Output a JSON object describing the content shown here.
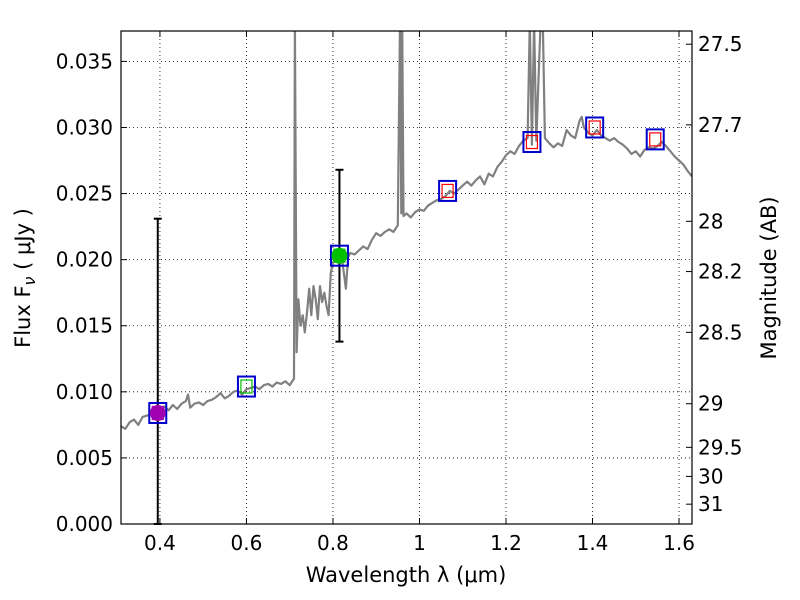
{
  "chart_data": {
    "type": "line",
    "xlabel": "Wavelength  λ (μm)",
    "ylabel_left": "Flux  F",
    "ylabel_left_sub": "ν",
    "ylabel_left_units": " ( μJy )",
    "ylabel_right": "Magnitude (AB)",
    "xlim": [
      0.31,
      1.63
    ],
    "ylim": [
      0.0,
      0.0373
    ],
    "grid": true,
    "x_ticks": [
      0.4,
      0.6,
      0.8,
      1.0,
      1.2,
      1.4,
      1.6
    ],
    "x_tick_labels": [
      "0.4",
      "0.6",
      "0.8",
      "1",
      "1.2",
      "1.4",
      "1.6"
    ],
    "y_ticks": [
      0.0,
      0.005,
      0.01,
      0.015,
      0.02,
      0.025,
      0.03,
      0.035
    ],
    "y_tick_labels": [
      "0.000",
      "0.005",
      "0.010",
      "0.015",
      "0.020",
      "0.025",
      "0.030",
      "0.035"
    ],
    "right_ticks": [
      {
        "label": "27.5",
        "flux": 0.0363
      },
      {
        "label": "27.7",
        "flux": 0.0302
      },
      {
        "label": "28",
        "flux": 0.0229
      },
      {
        "label": "28.2",
        "flux": 0.0191
      },
      {
        "label": "28.5",
        "flux": 0.0145
      },
      {
        "label": "29",
        "flux": 0.0091
      },
      {
        "label": "29.5",
        "flux": 0.0058
      },
      {
        "label": "30",
        "flux": 0.0036
      },
      {
        "label": "31",
        "flux": 0.0015
      }
    ],
    "series": [
      {
        "name": "model-spectrum",
        "color": "#808080",
        "points": [
          [
            0.31,
            0.0074
          ],
          [
            0.32,
            0.0072
          ],
          [
            0.33,
            0.0077
          ],
          [
            0.34,
            0.0079
          ],
          [
            0.35,
            0.0075
          ],
          [
            0.36,
            0.0081
          ],
          [
            0.37,
            0.0082
          ],
          [
            0.38,
            0.0083
          ],
          [
            0.39,
            0.0084
          ],
          [
            0.4,
            0.0085
          ],
          [
            0.41,
            0.0089
          ],
          [
            0.42,
            0.0086
          ],
          [
            0.43,
            0.009
          ],
          [
            0.44,
            0.0087
          ],
          [
            0.45,
            0.0091
          ],
          [
            0.46,
            0.0093
          ],
          [
            0.465,
            0.0098
          ],
          [
            0.47,
            0.0088
          ],
          [
            0.48,
            0.0091
          ],
          [
            0.49,
            0.0092
          ],
          [
            0.5,
            0.009
          ],
          [
            0.51,
            0.0093
          ],
          [
            0.52,
            0.0094
          ],
          [
            0.53,
            0.0096
          ],
          [
            0.54,
            0.0099
          ],
          [
            0.55,
            0.0095
          ],
          [
            0.56,
            0.0097
          ],
          [
            0.57,
            0.01
          ],
          [
            0.58,
            0.0101
          ],
          [
            0.59,
            0.0098
          ],
          [
            0.6,
            0.0102
          ],
          [
            0.61,
            0.0103
          ],
          [
            0.62,
            0.0104
          ],
          [
            0.63,
            0.0102
          ],
          [
            0.64,
            0.0105
          ],
          [
            0.65,
            0.0106
          ],
          [
            0.66,
            0.0104
          ],
          [
            0.67,
            0.0107
          ],
          [
            0.68,
            0.0106
          ],
          [
            0.69,
            0.0108
          ],
          [
            0.7,
            0.0105
          ],
          [
            0.71,
            0.011
          ],
          [
            0.712,
            0.038
          ],
          [
            0.716,
            0.013
          ],
          [
            0.72,
            0.017
          ],
          [
            0.725,
            0.015
          ],
          [
            0.73,
            0.0158
          ],
          [
            0.735,
            0.0145
          ],
          [
            0.74,
            0.016
          ],
          [
            0.745,
            0.0178
          ],
          [
            0.75,
            0.0158
          ],
          [
            0.755,
            0.018
          ],
          [
            0.76,
            0.017
          ],
          [
            0.765,
            0.0155
          ],
          [
            0.77,
            0.018
          ],
          [
            0.775,
            0.0168
          ],
          [
            0.78,
            0.0175
          ],
          [
            0.785,
            0.0165
          ],
          [
            0.79,
            0.0158
          ],
          [
            0.795,
            0.019
          ],
          [
            0.8,
            0.0198
          ],
          [
            0.81,
            0.02
          ],
          [
            0.82,
            0.0203
          ],
          [
            0.83,
            0.0178
          ],
          [
            0.835,
            0.0202
          ],
          [
            0.84,
            0.0205
          ],
          [
            0.85,
            0.0204
          ],
          [
            0.86,
            0.0207
          ],
          [
            0.87,
            0.021
          ],
          [
            0.88,
            0.0208
          ],
          [
            0.89,
            0.0215
          ],
          [
            0.9,
            0.022
          ],
          [
            0.91,
            0.0218
          ],
          [
            0.92,
            0.0221
          ],
          [
            0.93,
            0.0223
          ],
          [
            0.94,
            0.0221
          ],
          [
            0.95,
            0.0226
          ],
          [
            0.955,
            0.038
          ],
          [
            0.958,
            0.0235
          ],
          [
            0.96,
            0.038
          ],
          [
            0.963,
            0.0233
          ],
          [
            0.97,
            0.0235
          ],
          [
            0.98,
            0.0232
          ],
          [
            0.99,
            0.0236
          ],
          [
            1.0,
            0.0238
          ],
          [
            1.01,
            0.0237
          ],
          [
            1.02,
            0.0241
          ],
          [
            1.03,
            0.0243
          ],
          [
            1.04,
            0.0245
          ],
          [
            1.05,
            0.0246
          ],
          [
            1.06,
            0.0248
          ],
          [
            1.07,
            0.0252
          ],
          [
            1.08,
            0.025
          ],
          [
            1.09,
            0.0253
          ],
          [
            1.1,
            0.0256
          ],
          [
            1.11,
            0.0259
          ],
          [
            1.12,
            0.0256
          ],
          [
            1.13,
            0.026
          ],
          [
            1.14,
            0.0263
          ],
          [
            1.15,
            0.0257
          ],
          [
            1.16,
            0.0265
          ],
          [
            1.17,
            0.0263
          ],
          [
            1.18,
            0.027
          ],
          [
            1.19,
            0.0274
          ],
          [
            1.2,
            0.0279
          ],
          [
            1.21,
            0.0282
          ],
          [
            1.22,
            0.028
          ],
          [
            1.23,
            0.0286
          ],
          [
            1.24,
            0.029
          ],
          [
            1.25,
            0.0292
          ],
          [
            1.255,
            0.038
          ],
          [
            1.26,
            0.0287
          ],
          [
            1.265,
            0.038
          ],
          [
            1.27,
            0.029
          ],
          [
            1.28,
            0.038
          ],
          [
            1.285,
            0.038
          ],
          [
            1.29,
            0.0292
          ],
          [
            1.3,
            0.0288
          ],
          [
            1.31,
            0.0285
          ],
          [
            1.32,
            0.0288
          ],
          [
            1.33,
            0.0286
          ],
          [
            1.34,
            0.0298
          ],
          [
            1.35,
            0.0294
          ],
          [
            1.36,
            0.0292
          ],
          [
            1.37,
            0.0305
          ],
          [
            1.375,
            0.0308
          ],
          [
            1.38,
            0.03
          ],
          [
            1.39,
            0.0296
          ],
          [
            1.4,
            0.0294
          ],
          [
            1.41,
            0.0298
          ],
          [
            1.42,
            0.0294
          ],
          [
            1.43,
            0.0292
          ],
          [
            1.44,
            0.029
          ],
          [
            1.45,
            0.0292
          ],
          [
            1.46,
            0.0289
          ],
          [
            1.47,
            0.0287
          ],
          [
            1.48,
            0.0284
          ],
          [
            1.49,
            0.028
          ],
          [
            1.5,
            0.0282
          ],
          [
            1.51,
            0.0278
          ],
          [
            1.52,
            0.0283
          ],
          [
            1.53,
            0.0285
          ],
          [
            1.54,
            0.0284
          ],
          [
            1.55,
            0.0286
          ],
          [
            1.56,
            0.0289
          ],
          [
            1.57,
            0.0286
          ],
          [
            1.58,
            0.0282
          ],
          [
            1.59,
            0.0278
          ],
          [
            1.6,
            0.0275
          ],
          [
            1.61,
            0.0272
          ],
          [
            1.62,
            0.0267
          ],
          [
            1.63,
            0.0263
          ]
        ]
      }
    ],
    "photometry": [
      {
        "name": "point-0.39",
        "x": 0.395,
        "y": 0.0084,
        "type": "circle",
        "color": "#a000b0",
        "err_low": 0.0,
        "err_high": 0.0231
      },
      {
        "name": "point-0.81",
        "x": 0.815,
        "y": 0.0203,
        "type": "circle",
        "color": "#00c000",
        "err_low": 0.0138,
        "err_high": 0.0268
      }
    ],
    "model_boxes": [
      {
        "name": "box-0.395",
        "x": 0.395,
        "y": 0.0084,
        "inner_color": "#a000b0"
      },
      {
        "name": "box-0.60",
        "x": 0.6,
        "y": 0.0104,
        "inner_color": "#00c000"
      },
      {
        "name": "box-0.815",
        "x": 0.815,
        "y": 0.0203,
        "inner_color": "#00c000"
      },
      {
        "name": "box-1.065",
        "x": 1.065,
        "y": 0.0252,
        "inner_color": "#ff0000"
      },
      {
        "name": "box-1.26",
        "x": 1.26,
        "y": 0.0289,
        "inner_color": "#ff0000"
      },
      {
        "name": "box-1.405",
        "x": 1.405,
        "y": 0.03,
        "inner_color": "#ff0000"
      },
      {
        "name": "box-1.545",
        "x": 1.545,
        "y": 0.0291,
        "inner_color": "#ff0000"
      }
    ],
    "box_outer_color": "#0000cc"
  }
}
